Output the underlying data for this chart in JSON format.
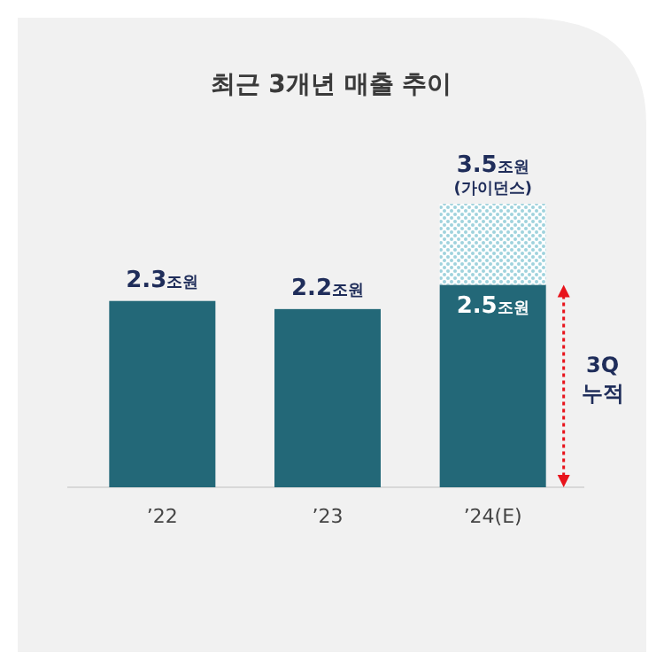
{
  "chart_data": {
    "type": "bar",
    "title": "최근 3개년 매출 추이",
    "categories": [
      "’22",
      "’23",
      "’24(E)"
    ],
    "stacked": true,
    "series": [
      {
        "color": "#236878",
        "values": [
          2.3,
          2.2,
          2.5
        ],
        "value_labels": [
          "2.3조원",
          "2.2조원",
          "2.5조원"
        ]
      },
      {
        "color": "#9fd3dd",
        "values": [
          null,
          null,
          1.0
        ]
      }
    ],
    "totals": [
      null,
      null,
      "3.5조원\n(가이던스)"
    ],
    "annotations": [
      "3Q\n누적"
    ]
  }
}
